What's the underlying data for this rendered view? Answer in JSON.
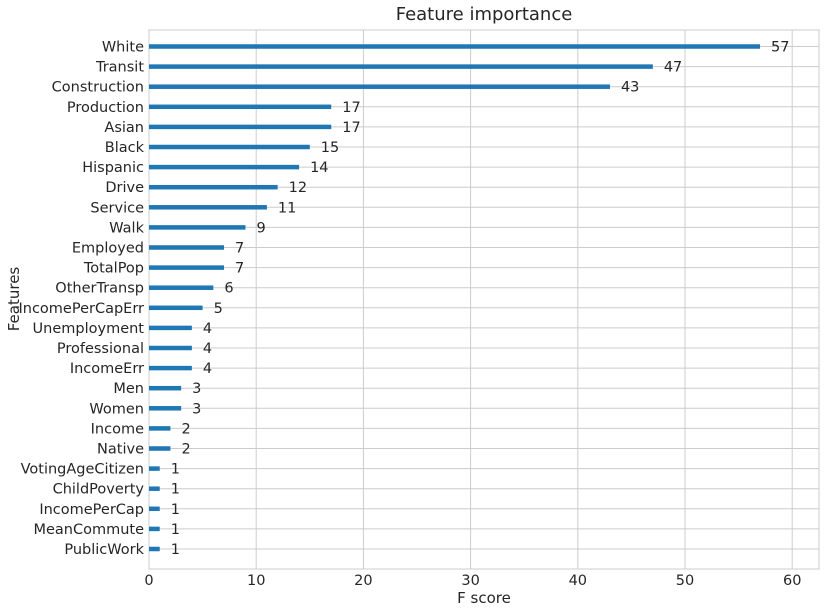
{
  "chart_data": {
    "type": "bar",
    "orientation": "horizontal",
    "title": "Feature importance",
    "xlabel": "F score",
    "ylabel": "Features",
    "xlim": [
      0,
      62.5
    ],
    "xticks": [
      0,
      10,
      20,
      30,
      40,
      50,
      60
    ],
    "grid": true,
    "bar_color": "#1f77b4",
    "categories": [
      "White",
      "Transit",
      "Construction",
      "Production",
      "Asian",
      "Black",
      "Hispanic",
      "Drive",
      "Service",
      "Walk",
      "Employed",
      "TotalPop",
      "OtherTransp",
      "IncomePerCapErr",
      "Unemployment",
      "Professional",
      "IncomeErr",
      "Men",
      "Women",
      "Income",
      "Native",
      "VotingAgeCitizen",
      "ChildPoverty",
      "IncomePerCap",
      "MeanCommute",
      "PublicWork"
    ],
    "values": [
      57,
      47,
      43,
      17,
      17,
      15,
      14,
      12,
      11,
      9,
      7,
      7,
      6,
      5,
      4,
      4,
      4,
      3,
      3,
      2,
      2,
      1,
      1,
      1,
      1,
      1
    ]
  }
}
